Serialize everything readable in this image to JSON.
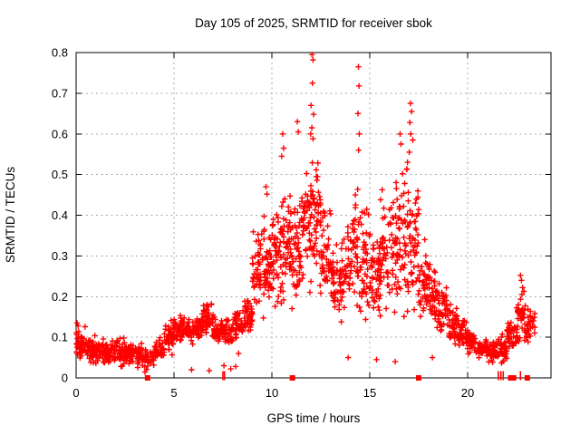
{
  "chart_data": {
    "type": "scatter",
    "title": "Day 105 of 2025, SRMTID for receiver sbok",
    "xlabel": "GPS time / hours",
    "ylabel": "SRMTID / TECUs",
    "xlim": [
      0,
      24.26
    ],
    "ylim": [
      0,
      0.8
    ],
    "xticks": [
      0,
      5,
      10,
      15,
      20
    ],
    "xtick_labels": [
      "0",
      "5",
      "10",
      "15",
      "20"
    ],
    "yticks": [
      0,
      0.1,
      0.2,
      0.3,
      0.4,
      0.5,
      0.6,
      0.7,
      0.8
    ],
    "ytick_labels": [
      "0",
      "0.1",
      "0.2",
      "0.3",
      "0.4",
      "0.5",
      "0.6",
      "0.7",
      "0.8"
    ],
    "grid": true,
    "legend": "none",
    "marker": "plus",
    "marker_color": "#ff0000",
    "colors": {
      "frame": "#000000",
      "grid": "#aaaaaa",
      "text": "#000000",
      "background": "#ffffff"
    },
    "seed": 105,
    "density_bins": [
      [
        0.0,
        0.5,
        40,
        0.03,
        0.13
      ],
      [
        0.5,
        1.0,
        42,
        0.03,
        0.11
      ],
      [
        1.0,
        1.5,
        42,
        0.02,
        0.105
      ],
      [
        1.5,
        2.0,
        42,
        0.02,
        0.1
      ],
      [
        2.0,
        2.5,
        42,
        0.02,
        0.11
      ],
      [
        2.5,
        3.0,
        42,
        0.02,
        0.1
      ],
      [
        3.0,
        3.5,
        38,
        0.015,
        0.09
      ],
      [
        3.5,
        4.0,
        30,
        0.01,
        0.08
      ],
      [
        4.0,
        4.5,
        36,
        0.03,
        0.105
      ],
      [
        4.5,
        5.0,
        40,
        0.05,
        0.16
      ],
      [
        5.0,
        5.5,
        42,
        0.07,
        0.17
      ],
      [
        5.5,
        6.0,
        38,
        0.07,
        0.16
      ],
      [
        6.0,
        6.5,
        40,
        0.08,
        0.17
      ],
      [
        6.5,
        7.0,
        42,
        0.09,
        0.2
      ],
      [
        7.0,
        7.5,
        38,
        0.07,
        0.16
      ],
      [
        7.5,
        8.0,
        36,
        0.07,
        0.16
      ],
      [
        8.0,
        8.5,
        40,
        0.09,
        0.18
      ],
      [
        8.5,
        9.0,
        42,
        0.1,
        0.22
      ],
      [
        9.0,
        9.5,
        46,
        0.12,
        0.42
      ],
      [
        9.5,
        10.0,
        48,
        0.12,
        0.43
      ],
      [
        10.0,
        10.5,
        50,
        0.14,
        0.47
      ],
      [
        10.5,
        11.0,
        50,
        0.14,
        0.52
      ],
      [
        11.0,
        11.5,
        48,
        0.15,
        0.46
      ],
      [
        11.5,
        12.0,
        48,
        0.17,
        0.58
      ],
      [
        12.0,
        12.5,
        50,
        0.16,
        0.62
      ],
      [
        12.5,
        13.0,
        44,
        0.15,
        0.46
      ],
      [
        13.0,
        13.5,
        40,
        0.12,
        0.36
      ],
      [
        13.5,
        14.0,
        40,
        0.12,
        0.4
      ],
      [
        14.0,
        14.5,
        44,
        0.12,
        0.52
      ],
      [
        14.5,
        15.0,
        44,
        0.11,
        0.46
      ],
      [
        15.0,
        15.5,
        44,
        0.1,
        0.42
      ],
      [
        15.5,
        16.0,
        44,
        0.12,
        0.5
      ],
      [
        16.0,
        16.5,
        44,
        0.11,
        0.54
      ],
      [
        16.5,
        17.0,
        46,
        0.12,
        0.58
      ],
      [
        17.0,
        17.5,
        46,
        0.11,
        0.56
      ],
      [
        17.5,
        18.0,
        40,
        0.1,
        0.36
      ],
      [
        18.0,
        18.5,
        40,
        0.09,
        0.31
      ],
      [
        18.5,
        19.0,
        40,
        0.08,
        0.26
      ],
      [
        19.0,
        19.5,
        40,
        0.07,
        0.19
      ],
      [
        19.5,
        20.0,
        40,
        0.06,
        0.16
      ],
      [
        20.0,
        20.5,
        40,
        0.05,
        0.13
      ],
      [
        20.5,
        21.0,
        40,
        0.04,
        0.11
      ],
      [
        21.0,
        21.5,
        40,
        0.03,
        0.1
      ],
      [
        21.5,
        22.0,
        40,
        0.03,
        0.12
      ],
      [
        22.0,
        22.5,
        40,
        0.04,
        0.16
      ],
      [
        22.5,
        23.0,
        42,
        0.05,
        0.25
      ],
      [
        23.0,
        23.45,
        30,
        0.06,
        0.2
      ]
    ],
    "outlier_points": [
      [
        0.05,
        0.135
      ],
      [
        0.1,
        0.128
      ],
      [
        5.9,
        0.02
      ],
      [
        6.8,
        0.018
      ],
      [
        7.55,
        0.03
      ],
      [
        7.9,
        0.022
      ],
      [
        8.15,
        0.028
      ],
      [
        8.3,
        0.06
      ],
      [
        9.7,
        0.47
      ],
      [
        9.75,
        0.452
      ],
      [
        10.5,
        0.545
      ],
      [
        10.55,
        0.6
      ],
      [
        10.6,
        0.565
      ],
      [
        11.3,
        0.63
      ],
      [
        11.35,
        0.605
      ],
      [
        11.98,
        0.6
      ],
      [
        12.0,
        0.67
      ],
      [
        12.04,
        0.615
      ],
      [
        12.05,
        0.795
      ],
      [
        12.07,
        0.725
      ],
      [
        12.1,
        0.782
      ],
      [
        12.1,
        0.588
      ],
      [
        12.13,
        0.648
      ],
      [
        13.9,
        0.05
      ],
      [
        14.4,
        0.65
      ],
      [
        14.42,
        0.765
      ],
      [
        14.43,
        0.56
      ],
      [
        14.45,
        0.718
      ],
      [
        14.47,
        0.6
      ],
      [
        15.35,
        0.045
      ],
      [
        16.3,
        0.04
      ],
      [
        16.55,
        0.6
      ],
      [
        16.6,
        0.575
      ],
      [
        17.02,
        0.555
      ],
      [
        17.05,
        0.628
      ],
      [
        17.08,
        0.675
      ],
      [
        17.1,
        0.6
      ],
      [
        17.14,
        0.655
      ],
      [
        17.2,
        0.585
      ],
      [
        18.2,
        0.05
      ],
      [
        22.7,
        0.252
      ],
      [
        22.75,
        0.24
      ]
    ],
    "axis_markers": {
      "squares_x": [
        3.65,
        11.05,
        17.5,
        22.2,
        22.35,
        23.05
      ],
      "ticks_x": [
        7.5,
        7.58,
        21.57,
        21.7,
        21.82,
        22.7
      ]
    }
  }
}
